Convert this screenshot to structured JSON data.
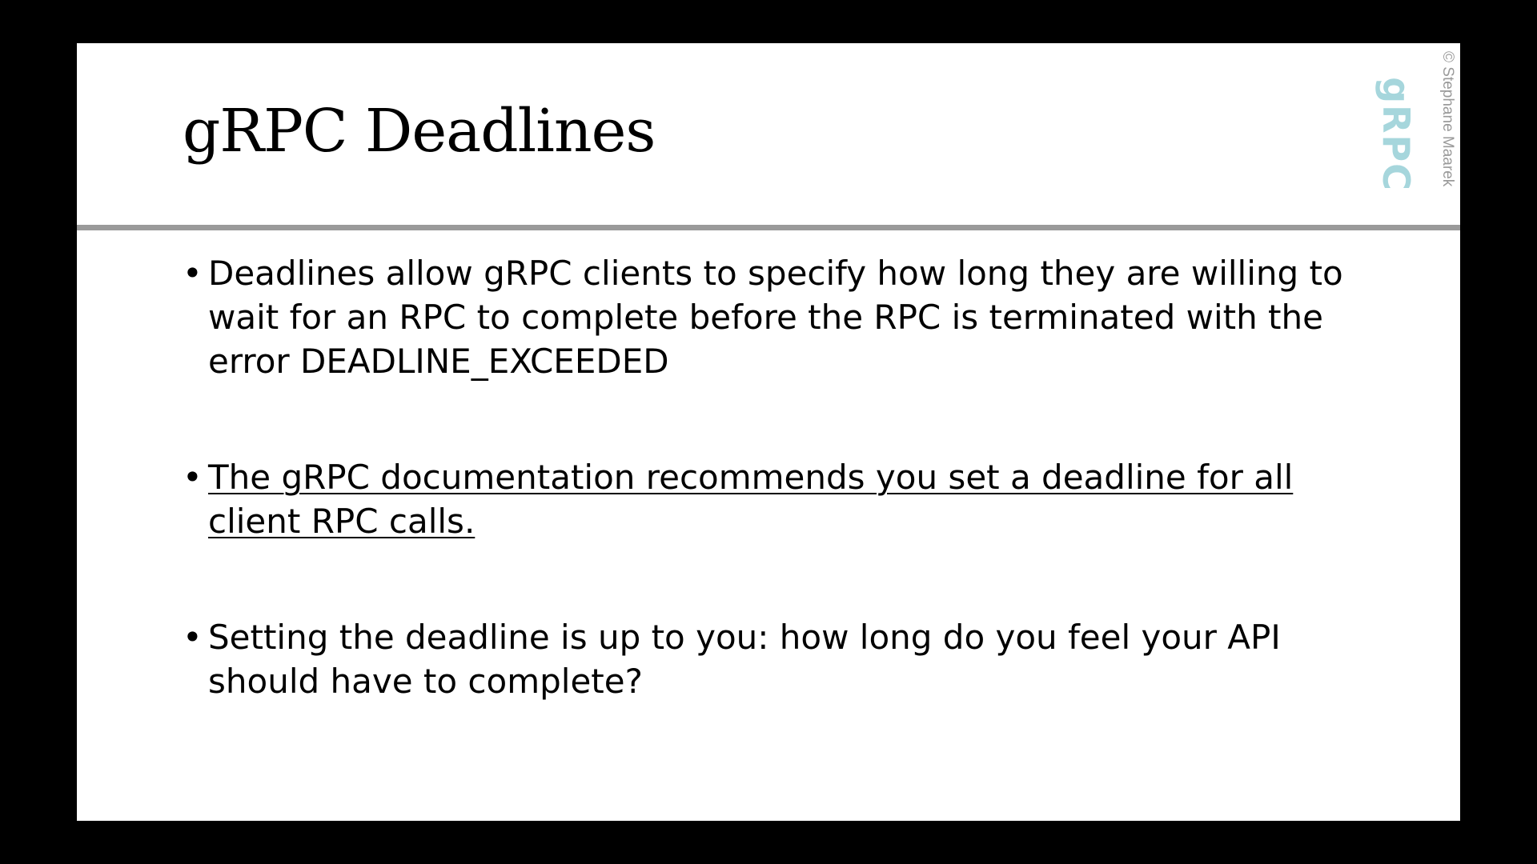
{
  "slide": {
    "title": "gRPC Deadlines",
    "logo_text": "gRPC",
    "copyright": "© Stephane Maarek",
    "bullet_symbol": "•",
    "bullets": [
      {
        "text": "Deadlines allow gRPC clients to specify how long they are willing to wait for an RPC to complete before the RPC is terminated with the error DEADLINE_EXCEEDED"
      },
      {
        "text": "The gRPC documentation recommends you set a deadline for all client RPC calls."
      },
      {
        "text": "Setting the deadline is up to you: how long do you feel your API should have to complete?"
      }
    ]
  },
  "colors": {
    "frame": "#000000",
    "slide_background": "#ffffff",
    "divider": "#9a9a9a",
    "logo": "#a6d6dc",
    "copyright": "#9a9a9a"
  }
}
